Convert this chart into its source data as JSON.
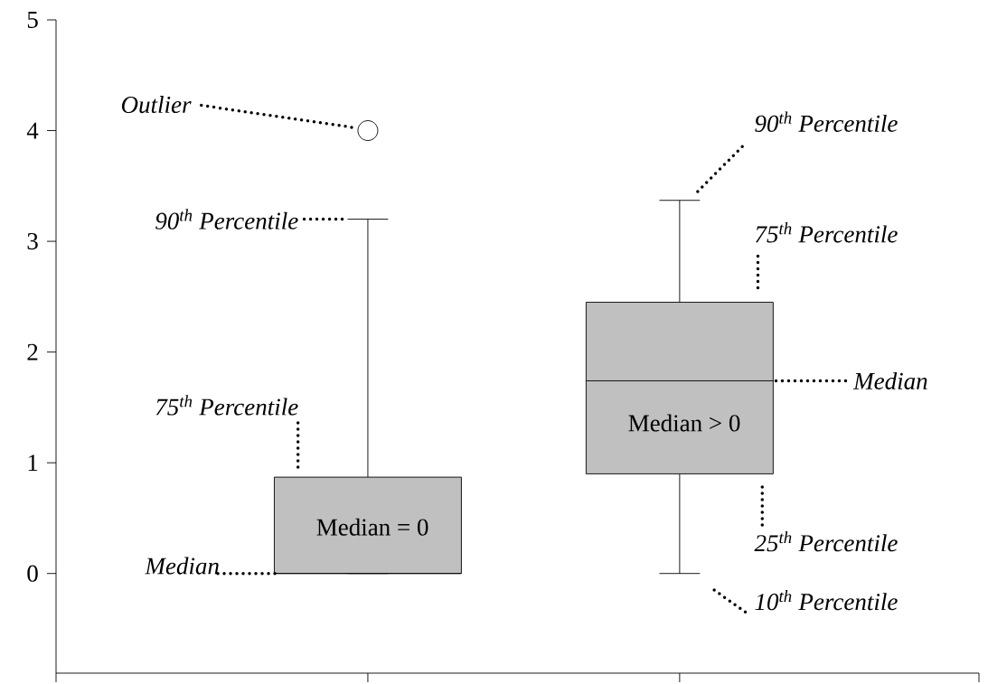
{
  "chart_data": {
    "type": "box",
    "categories": [
      null,
      null
    ],
    "color": "#c0c0c0",
    "tick_labels": "y",
    "ylim": [
      -0.9,
      5
    ],
    "yticks": [
      0,
      1,
      2,
      3,
      4,
      5
    ],
    "boxes": [
      {
        "low": 0,
        "q1": 0,
        "median": 0,
        "q3": 0.87,
        "high": 3.2,
        "outliers": [
          4
        ]
      },
      {
        "low": 0,
        "q1": 0.9,
        "median": 1.74,
        "q3": 2.45,
        "high": 3.37
      }
    ],
    "annotations": [
      "Outlier",
      "90$^{th}$ Percentile",
      "75$^{th}$ Percentile",
      "Median",
      "Median = 0",
      "90$^{th}$ Percentile",
      "75$^{th}$ Percentile",
      "Median",
      "Median > 0",
      "25$^{th}$ Percentile",
      "10$^{th}$ Percentile"
    ]
  }
}
